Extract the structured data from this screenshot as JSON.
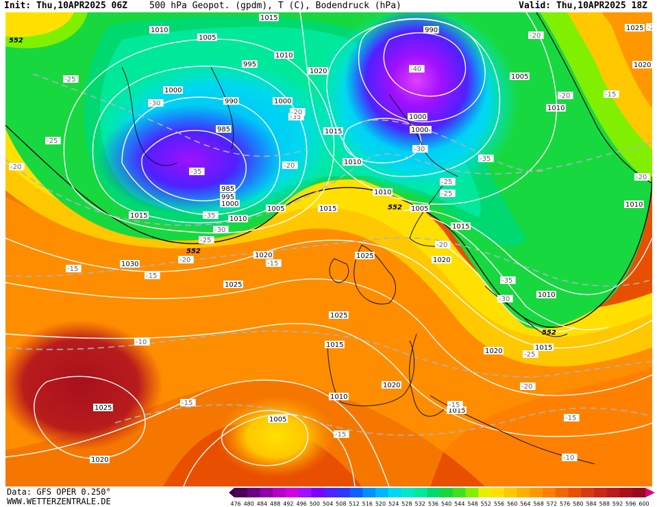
{
  "header": {
    "init": "Init: Thu,10APR2025 06Z",
    "title": "500 hPa Geopot. (gpdm), T (C), Bodendruck (hPa)",
    "valid": "Valid: Thu,10APR2025 18Z"
  },
  "footer": {
    "data_source": "Data: GFS OPER 0.250°",
    "website": "WWW.WETTERZENTRALE.DE"
  },
  "legend": {
    "values": [
      "476",
      "480",
      "484",
      "488",
      "492",
      "496",
      "500",
      "504",
      "508",
      "512",
      "516",
      "520",
      "524",
      "528",
      "532",
      "536",
      "540",
      "544",
      "548",
      "552",
      "556",
      "560",
      "564",
      "568",
      "572",
      "576",
      "580",
      "584",
      "588",
      "592",
      "596",
      "600"
    ],
    "colors": [
      "#4b0055",
      "#6a0080",
      "#8f00a8",
      "#b800c8",
      "#d000e0",
      "#a010ff",
      "#7a00ff",
      "#5020ff",
      "#2a38ff",
      "#1060ff",
      "#0090ff",
      "#00b8ff",
      "#00d8f0",
      "#00e8c8",
      "#00e89a",
      "#00d870",
      "#18d840",
      "#40e020",
      "#80f000",
      "#e6f000",
      "#ffe000",
      "#ffc800",
      "#ffb000",
      "#ff9800",
      "#ff8000",
      "#f26800",
      "#e85000",
      "#d83a10",
      "#c82818",
      "#b81c1c",
      "#a8101c",
      "#980a1c"
    ]
  },
  "map": {
    "height_labels": [
      {
        "text": "552"
      },
      {
        "text": "552"
      },
      {
        "text": "552"
      },
      {
        "text": "552"
      }
    ],
    "pressure_labels": [
      {
        "text": "1010"
      },
      {
        "text": "1005"
      },
      {
        "text": "1015"
      },
      {
        "text": "995"
      },
      {
        "text": "990"
      },
      {
        "text": "1010"
      },
      {
        "text": "1020"
      },
      {
        "text": "1000"
      },
      {
        "text": "990"
      },
      {
        "text": "1000"
      },
      {
        "text": "985"
      },
      {
        "text": "1015"
      },
      {
        "text": "1010"
      },
      {
        "text": "1005"
      },
      {
        "text": "1010"
      },
      {
        "text": "1005"
      },
      {
        "text": "985"
      },
      {
        "text": "995"
      },
      {
        "text": "1000"
      },
      {
        "text": "1005"
      },
      {
        "text": "1015"
      },
      {
        "text": "1010"
      },
      {
        "text": "1015"
      },
      {
        "text": "1010"
      },
      {
        "text": "1005"
      },
      {
        "text": "1015"
      },
      {
        "text": "1010"
      },
      {
        "text": "1025"
      },
      {
        "text": "1020"
      },
      {
        "text": "1030"
      },
      {
        "text": "1025"
      },
      {
        "text": "1020"
      },
      {
        "text": "1025"
      },
      {
        "text": "1015"
      },
      {
        "text": "1020"
      },
      {
        "text": "1020"
      },
      {
        "text": "1010"
      },
      {
        "text": "1015"
      },
      {
        "text": "1010"
      },
      {
        "text": "1015"
      },
      {
        "text": "1025"
      },
      {
        "text": "1020"
      },
      {
        "text": "1005"
      },
      {
        "text": "1025"
      },
      {
        "text": "1020"
      },
      {
        "text": "1000"
      },
      {
        "text": "1000"
      }
    ],
    "temp_labels": [
      {
        "text": "-25"
      },
      {
        "text": "-30"
      },
      {
        "text": "-25"
      },
      {
        "text": "-20"
      },
      {
        "text": "-35"
      },
      {
        "text": "-35"
      },
      {
        "text": "-30"
      },
      {
        "text": "-25"
      },
      {
        "text": "-20"
      },
      {
        "text": "-15"
      },
      {
        "text": "-15"
      },
      {
        "text": "-10"
      },
      {
        "text": "-15"
      },
      {
        "text": "-15"
      },
      {
        "text": "-20"
      },
      {
        "text": "-35"
      },
      {
        "text": "-40"
      },
      {
        "text": "-30"
      },
      {
        "text": "-35"
      },
      {
        "text": "-25"
      },
      {
        "text": "-20"
      },
      {
        "text": "-25"
      },
      {
        "text": "-20"
      },
      {
        "text": "-20"
      },
      {
        "text": "-15"
      },
      {
        "text": "-35"
      },
      {
        "text": "-30"
      },
      {
        "text": "-20"
      },
      {
        "text": "-15"
      },
      {
        "text": "-10"
      },
      {
        "text": "-25"
      },
      {
        "text": "-15"
      },
      {
        "text": "-20"
      },
      {
        "text": "-15"
      },
      {
        "text": "-25"
      },
      {
        "text": "-20"
      }
    ]
  }
}
